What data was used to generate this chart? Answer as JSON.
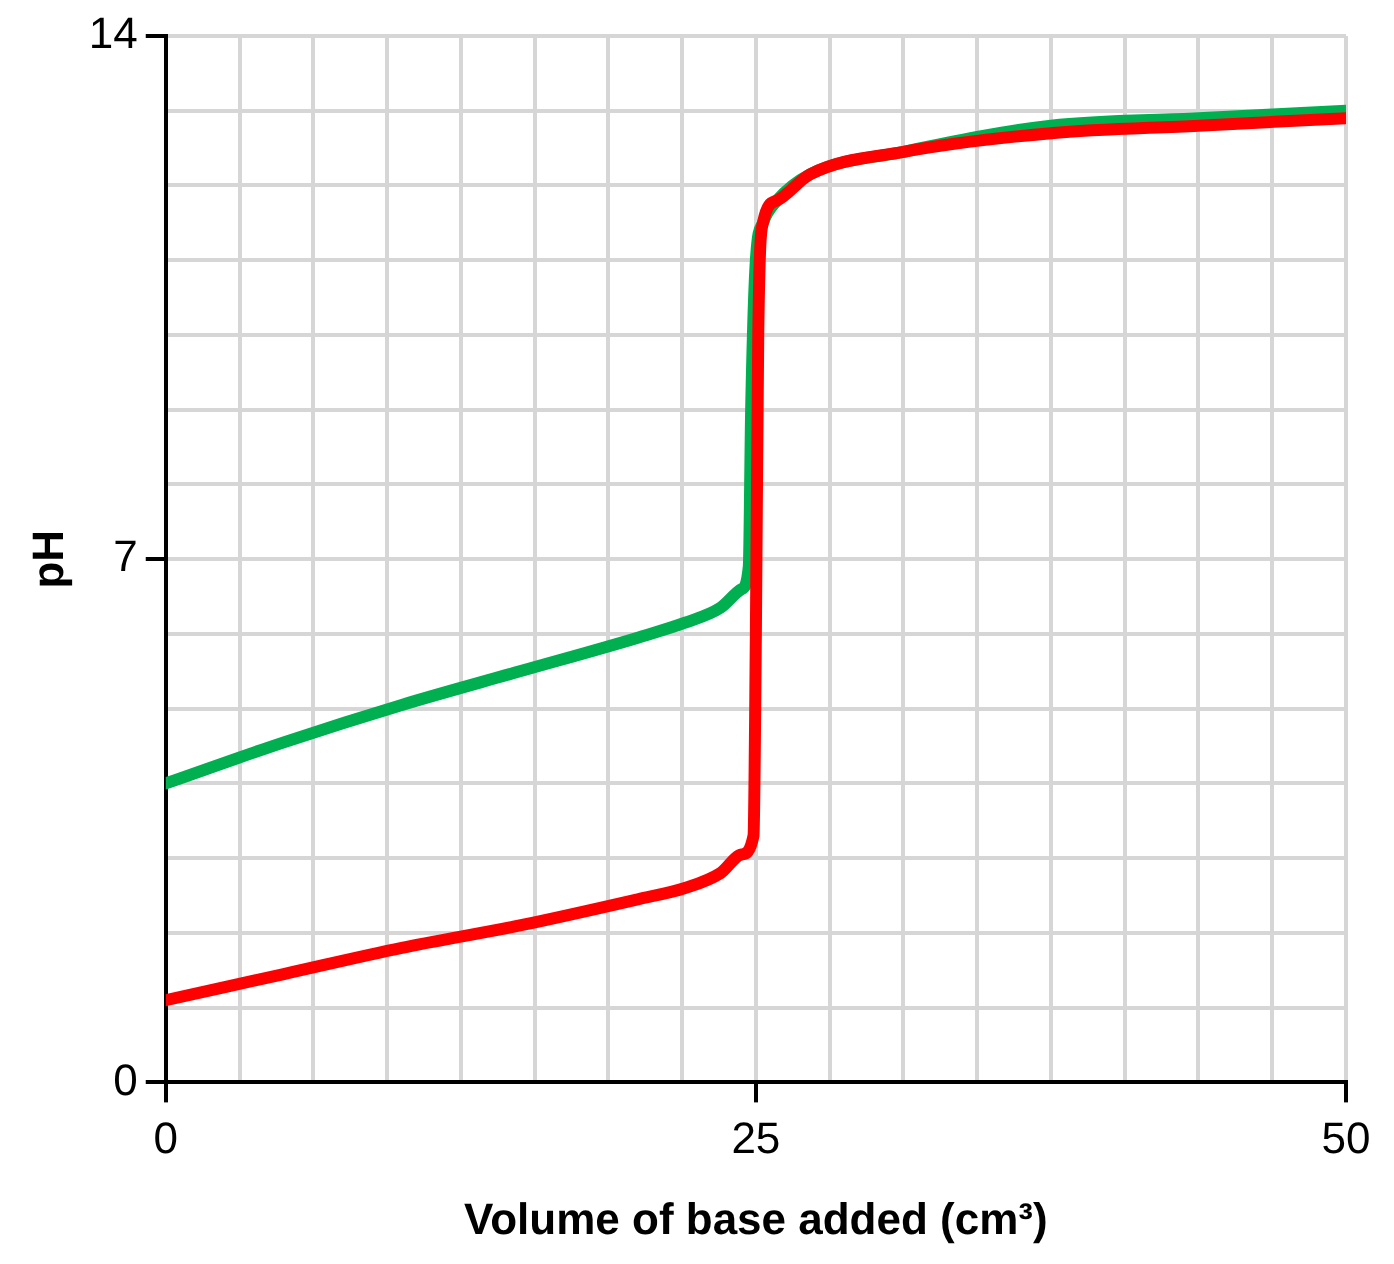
{
  "chart_data": {
    "type": "line",
    "xlabel": "Volume of base added (cm³)",
    "ylabel": "pH",
    "xlim": [
      0,
      50
    ],
    "ylim": [
      0,
      14
    ],
    "xticks": [
      0,
      {
        "value": 3.125,
        "label": null
      },
      {
        "value": 6.25,
        "label": null
      },
      {
        "value": 9.375,
        "label": null
      },
      {
        "value": 12.5,
        "label": null
      },
      {
        "value": 15.625,
        "label": null
      },
      {
        "value": 18.75,
        "label": null
      },
      {
        "value": 21.875,
        "label": null
      },
      25,
      {
        "value": 28.125,
        "label": null
      },
      {
        "value": 31.25,
        "label": null
      },
      {
        "value": 34.375,
        "label": null
      },
      {
        "value": 37.5,
        "label": null
      },
      {
        "value": 40.625,
        "label": null
      },
      {
        "value": 43.75,
        "label": null
      },
      {
        "value": 46.875,
        "label": null
      },
      50
    ],
    "yticks": [
      0,
      {
        "value": 1,
        "label": null
      },
      {
        "value": 2,
        "label": null
      },
      {
        "value": 3,
        "label": null
      },
      {
        "value": 4,
        "label": null
      },
      {
        "value": 5,
        "label": null
      },
      {
        "value": 6,
        "label": null
      },
      7,
      {
        "value": 8,
        "label": null
      },
      {
        "value": 9,
        "label": null
      },
      {
        "value": 10,
        "label": null
      },
      {
        "value": 11,
        "label": null
      },
      {
        "value": 12,
        "label": null
      },
      {
        "value": 13,
        "label": null
      },
      14
    ],
    "grid": true,
    "legend": false,
    "marker": "none",
    "line_style": "solid",
    "series": [
      {
        "color": "#00b050",
        "x": [
          0,
          5,
          10,
          15,
          20,
          22,
          23.5,
          24.4,
          24.7,
          24.8,
          25,
          25.3,
          25.9,
          27.3,
          31.25,
          37.5,
          43.75,
          50
        ],
        "values": [
          4.0,
          4.55,
          5.05,
          5.5,
          5.95,
          6.15,
          6.35,
          6.6,
          6.9,
          9,
          11,
          11.5,
          11.8,
          12.15,
          12.45,
          12.8,
          12.9,
          13.0
        ]
      },
      {
        "color": "#ff0000",
        "x": [
          0,
          5,
          10,
          15,
          20,
          22,
          23.5,
          24.4,
          24.9,
          25,
          25.1,
          25.3,
          25.9,
          27.3,
          31.25,
          37.5,
          43.75,
          50
        ],
        "values": [
          1.1,
          1.45,
          1.8,
          2.1,
          2.45,
          2.6,
          2.8,
          3.05,
          3.3,
          6,
          10,
          11.5,
          11.8,
          12.15,
          12.45,
          12.7,
          12.8,
          12.9
        ]
      }
    ]
  }
}
